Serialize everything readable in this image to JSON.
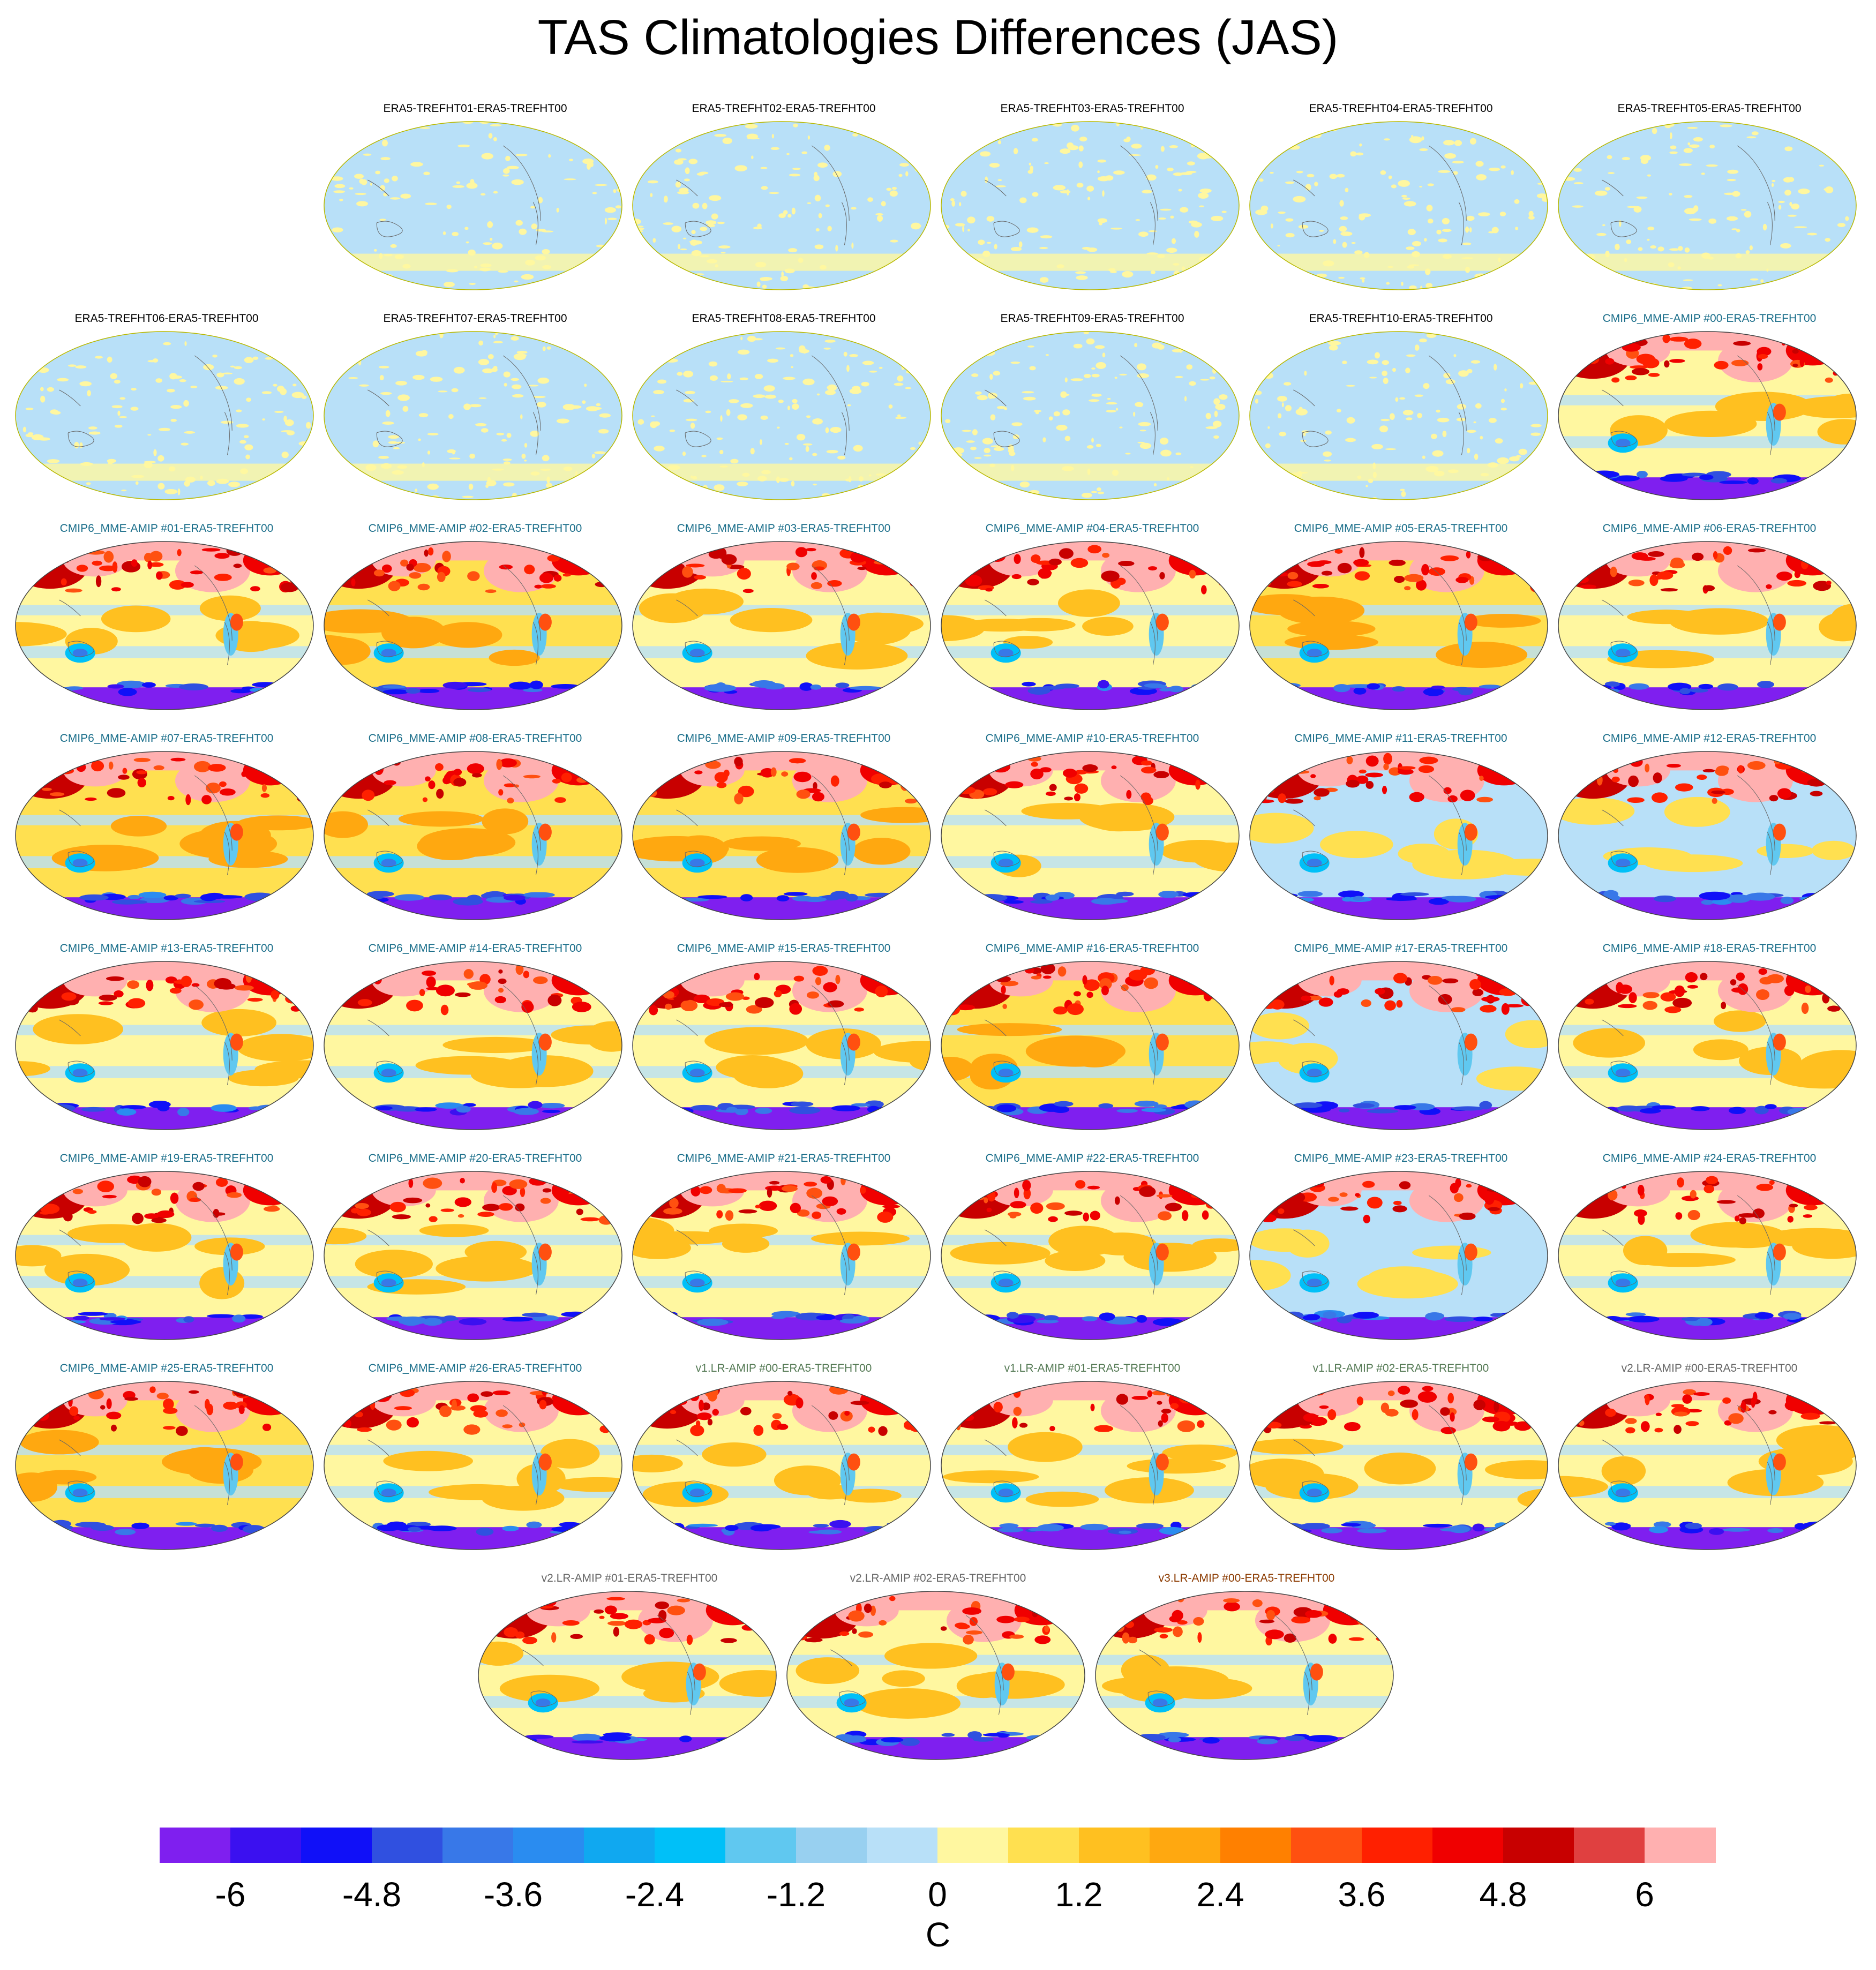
{
  "figure": {
    "title": "TAS Climatologies Differences (JAS)"
  },
  "chart_data": {
    "type": "heatmap",
    "title": "TAS Climatologies Differences (JAS)",
    "projection": "Robinson",
    "units": "C",
    "levels": [
      -6.6,
      -6,
      -5.4,
      -4.8,
      -4.2,
      -3.6,
      -3,
      -2.4,
      -1.8,
      -1.2,
      -0.6,
      0,
      0.6,
      1.2,
      1.8,
      2.4,
      3,
      3.6,
      4.2,
      4.8,
      5.4,
      6,
      6.6
    ],
    "colorbar": {
      "colors": [
        "#7f1fef",
        "#3b10f0",
        "#1010f8",
        "#3050e0",
        "#3878e8",
        "#2a8cf0",
        "#10a8f0",
        "#00c0f8",
        "#60c8f0",
        "#98d0f0",
        "#b8e0f8",
        "#fff7a0",
        "#ffe050",
        "#ffc020",
        "#ffa810",
        "#ff8000",
        "#ff5010",
        "#ff2000",
        "#f00000",
        "#c80000",
        "#e04040",
        "#ffb0b0"
      ],
      "tick_labels": [
        "-6",
        "-4.8",
        "-3.6",
        "-2.4",
        "-1.2",
        "0",
        "1.2",
        "2.4",
        "3.6",
        "4.8",
        "6"
      ],
      "tick_values": [
        -6,
        -4.8,
        -3.6,
        -2.4,
        -1.2,
        0,
        1.2,
        2.4,
        3.6,
        4.8,
        6
      ],
      "unit_label": "C"
    },
    "group_colors": {
      "era5": "#000000",
      "cmip6": "#1a6e8a",
      "v1": "#557a55",
      "v2": "#666666",
      "v3": "#8b3a00"
    },
    "panels": [
      {
        "title": "ERA5-TREFHT01-ERA5-TREFHT00",
        "group": "era5",
        "row": 0,
        "col": 1,
        "pattern": "near-zero"
      },
      {
        "title": "ERA5-TREFHT02-ERA5-TREFHT00",
        "group": "era5",
        "row": 0,
        "col": 2,
        "pattern": "near-zero"
      },
      {
        "title": "ERA5-TREFHT03-ERA5-TREFHT00",
        "group": "era5",
        "row": 0,
        "col": 3,
        "pattern": "near-zero"
      },
      {
        "title": "ERA5-TREFHT04-ERA5-TREFHT00",
        "group": "era5",
        "row": 0,
        "col": 4,
        "pattern": "near-zero"
      },
      {
        "title": "ERA5-TREFHT05-ERA5-TREFHT00",
        "group": "era5",
        "row": 0,
        "col": 5,
        "pattern": "near-zero"
      },
      {
        "title": "ERA5-TREFHT06-ERA5-TREFHT00",
        "group": "era5",
        "row": 1,
        "col": 0,
        "pattern": "near-zero"
      },
      {
        "title": "ERA5-TREFHT07-ERA5-TREFHT00",
        "group": "era5",
        "row": 1,
        "col": 1,
        "pattern": "near-zero"
      },
      {
        "title": "ERA5-TREFHT08-ERA5-TREFHT00",
        "group": "era5",
        "row": 1,
        "col": 2,
        "pattern": "near-zero"
      },
      {
        "title": "ERA5-TREFHT09-ERA5-TREFHT00",
        "group": "era5",
        "row": 1,
        "col": 3,
        "pattern": "near-zero"
      },
      {
        "title": "ERA5-TREFHT10-ERA5-TREFHT00",
        "group": "era5",
        "row": 1,
        "col": 4,
        "pattern": "near-zero"
      },
      {
        "title": "CMIP6_MME-AMIP  #00-ERA5-TREFHT00",
        "group": "cmip6",
        "row": 1,
        "col": 5,
        "pattern": "model"
      },
      {
        "title": "CMIP6_MME-AMIP  #01-ERA5-TREFHT00",
        "group": "cmip6",
        "row": 2,
        "col": 0,
        "pattern": "model"
      },
      {
        "title": "CMIP6_MME-AMIP  #02-ERA5-TREFHT00",
        "group": "cmip6",
        "row": 2,
        "col": 1,
        "pattern": "model-warm"
      },
      {
        "title": "CMIP6_MME-AMIP  #03-ERA5-TREFHT00",
        "group": "cmip6",
        "row": 2,
        "col": 2,
        "pattern": "model"
      },
      {
        "title": "CMIP6_MME-AMIP  #04-ERA5-TREFHT00",
        "group": "cmip6",
        "row": 2,
        "col": 3,
        "pattern": "model"
      },
      {
        "title": "CMIP6_MME-AMIP  #05-ERA5-TREFHT00",
        "group": "cmip6",
        "row": 2,
        "col": 4,
        "pattern": "model-warm"
      },
      {
        "title": "CMIP6_MME-AMIP  #06-ERA5-TREFHT00",
        "group": "cmip6",
        "row": 2,
        "col": 5,
        "pattern": "model"
      },
      {
        "title": "CMIP6_MME-AMIP  #07-ERA5-TREFHT00",
        "group": "cmip6",
        "row": 3,
        "col": 0,
        "pattern": "model-warm"
      },
      {
        "title": "CMIP6_MME-AMIP  #08-ERA5-TREFHT00",
        "group": "cmip6",
        "row": 3,
        "col": 1,
        "pattern": "model-warm"
      },
      {
        "title": "CMIP6_MME-AMIP  #09-ERA5-TREFHT00",
        "group": "cmip6",
        "row": 3,
        "col": 2,
        "pattern": "model-warm"
      },
      {
        "title": "CMIP6_MME-AMIP  #10-ERA5-TREFHT00",
        "group": "cmip6",
        "row": 3,
        "col": 3,
        "pattern": "model"
      },
      {
        "title": "CMIP6_MME-AMIP  #11-ERA5-TREFHT00",
        "group": "cmip6",
        "row": 3,
        "col": 4,
        "pattern": "model-cool"
      },
      {
        "title": "CMIP6_MME-AMIP  #12-ERA5-TREFHT00",
        "group": "cmip6",
        "row": 3,
        "col": 5,
        "pattern": "model-cool"
      },
      {
        "title": "CMIP6_MME-AMIP  #13-ERA5-TREFHT00",
        "group": "cmip6",
        "row": 4,
        "col": 0,
        "pattern": "model"
      },
      {
        "title": "CMIP6_MME-AMIP  #14-ERA5-TREFHT00",
        "group": "cmip6",
        "row": 4,
        "col": 1,
        "pattern": "model"
      },
      {
        "title": "CMIP6_MME-AMIP  #15-ERA5-TREFHT00",
        "group": "cmip6",
        "row": 4,
        "col": 2,
        "pattern": "model"
      },
      {
        "title": "CMIP6_MME-AMIP  #16-ERA5-TREFHT00",
        "group": "cmip6",
        "row": 4,
        "col": 3,
        "pattern": "model-warm"
      },
      {
        "title": "CMIP6_MME-AMIP  #17-ERA5-TREFHT00",
        "group": "cmip6",
        "row": 4,
        "col": 4,
        "pattern": "model-cool"
      },
      {
        "title": "CMIP6_MME-AMIP  #18-ERA5-TREFHT00",
        "group": "cmip6",
        "row": 4,
        "col": 5,
        "pattern": "model"
      },
      {
        "title": "CMIP6_MME-AMIP  #19-ERA5-TREFHT00",
        "group": "cmip6",
        "row": 5,
        "col": 0,
        "pattern": "model"
      },
      {
        "title": "CMIP6_MME-AMIP  #20-ERA5-TREFHT00",
        "group": "cmip6",
        "row": 5,
        "col": 1,
        "pattern": "model"
      },
      {
        "title": "CMIP6_MME-AMIP  #21-ERA5-TREFHT00",
        "group": "cmip6",
        "row": 5,
        "col": 2,
        "pattern": "model"
      },
      {
        "title": "CMIP6_MME-AMIP  #22-ERA5-TREFHT00",
        "group": "cmip6",
        "row": 5,
        "col": 3,
        "pattern": "model"
      },
      {
        "title": "CMIP6_MME-AMIP  #23-ERA5-TREFHT00",
        "group": "cmip6",
        "row": 5,
        "col": 4,
        "pattern": "model-cool"
      },
      {
        "title": "CMIP6_MME-AMIP  #24-ERA5-TREFHT00",
        "group": "cmip6",
        "row": 5,
        "col": 5,
        "pattern": "model"
      },
      {
        "title": "CMIP6_MME-AMIP  #25-ERA5-TREFHT00",
        "group": "cmip6",
        "row": 6,
        "col": 0,
        "pattern": "model-warm"
      },
      {
        "title": "CMIP6_MME-AMIP  #26-ERA5-TREFHT00",
        "group": "cmip6",
        "row": 6,
        "col": 1,
        "pattern": "model"
      },
      {
        "title": "v1.LR-AMIP  #00-ERA5-TREFHT00",
        "group": "v1",
        "row": 6,
        "col": 2,
        "pattern": "model"
      },
      {
        "title": "v1.LR-AMIP  #01-ERA5-TREFHT00",
        "group": "v1",
        "row": 6,
        "col": 3,
        "pattern": "model"
      },
      {
        "title": "v1.LR-AMIP  #02-ERA5-TREFHT00",
        "group": "v1",
        "row": 6,
        "col": 4,
        "pattern": "model"
      },
      {
        "title": "v2.LR-AMIP  #00-ERA5-TREFHT00",
        "group": "v2",
        "row": 6,
        "col": 5,
        "pattern": "model"
      },
      {
        "title": "v2.LR-AMIP  #01-ERA5-TREFHT00",
        "group": "v2",
        "row": 7,
        "col": 1.5,
        "pattern": "model"
      },
      {
        "title": "v2.LR-AMIP  #02-ERA5-TREFHT00",
        "group": "v2",
        "row": 7,
        "col": 2.5,
        "pattern": "model"
      },
      {
        "title": "v3.LR-AMIP  #00-ERA5-TREFHT00",
        "group": "v3",
        "row": 7,
        "col": 3.5,
        "pattern": "model"
      }
    ]
  }
}
